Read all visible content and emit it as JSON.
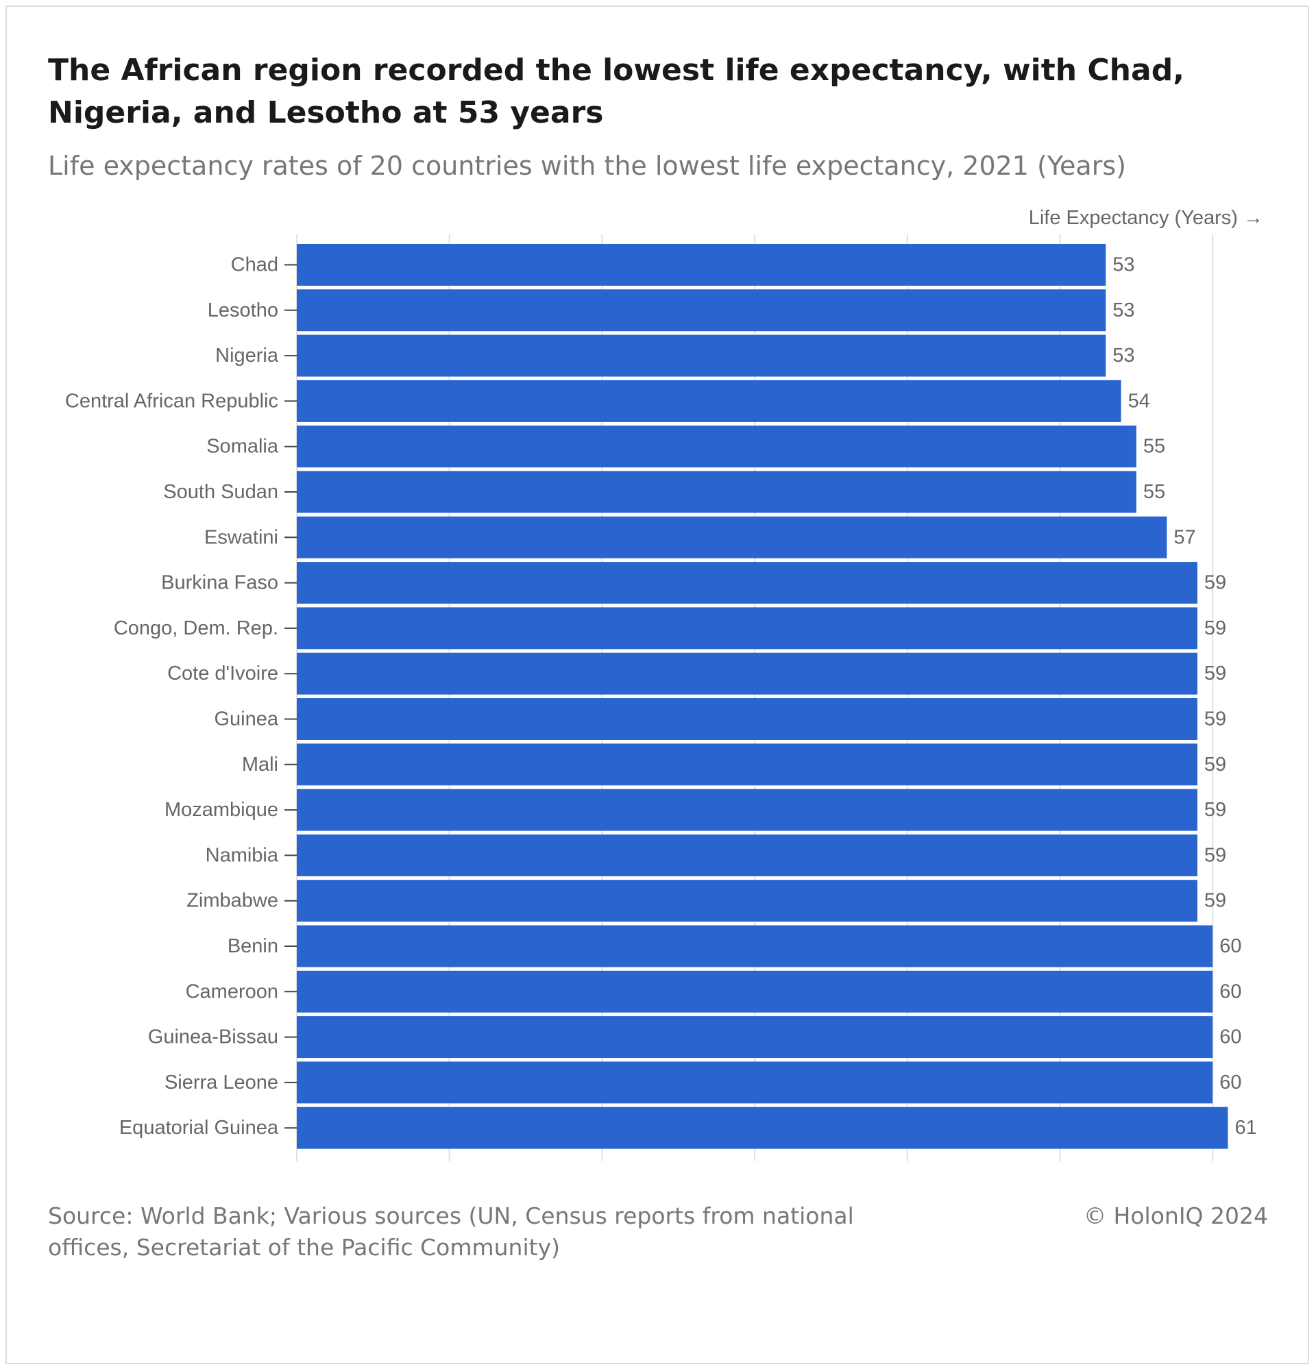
{
  "colors": {
    "bar": "#2a65cf",
    "grid": "#e2e2e2",
    "axis_text": "#666666",
    "tick": "#444444"
  },
  "header": {
    "title": "The African region recorded the lowest life expectancy, with Chad, Nigeria, and Lesotho at 53 years",
    "subtitle": "Life expectancy rates of 20 countries with the lowest life expectancy, 2021 (Years)"
  },
  "footer": {
    "source": "Source: World Bank; Various sources (UN, Census reports from national offices, Secretariat of the Pacific Community)",
    "copyright": "© HolonIQ 2024"
  },
  "chart_data": {
    "type": "bar",
    "orientation": "horizontal",
    "axis_label": "Life Expectancy (Years) →",
    "xlim": [
      0,
      60
    ],
    "grid": true,
    "categories": [
      "Chad",
      "Lesotho",
      "Nigeria",
      "Central African Republic",
      "Somalia",
      "South Sudan",
      "Eswatini",
      "Burkina Faso",
      "Congo, Dem. Rep.",
      "Cote d'Ivoire",
      "Guinea",
      "Mali",
      "Mozambique",
      "Namibia",
      "Zimbabwe",
      "Benin",
      "Cameroon",
      "Guinea-Bissau",
      "Sierra Leone",
      "Equatorial Guinea"
    ],
    "values": [
      53,
      53,
      53,
      54,
      55,
      55,
      57,
      59,
      59,
      59,
      59,
      59,
      59,
      59,
      59,
      60,
      60,
      60,
      60,
      61
    ]
  }
}
